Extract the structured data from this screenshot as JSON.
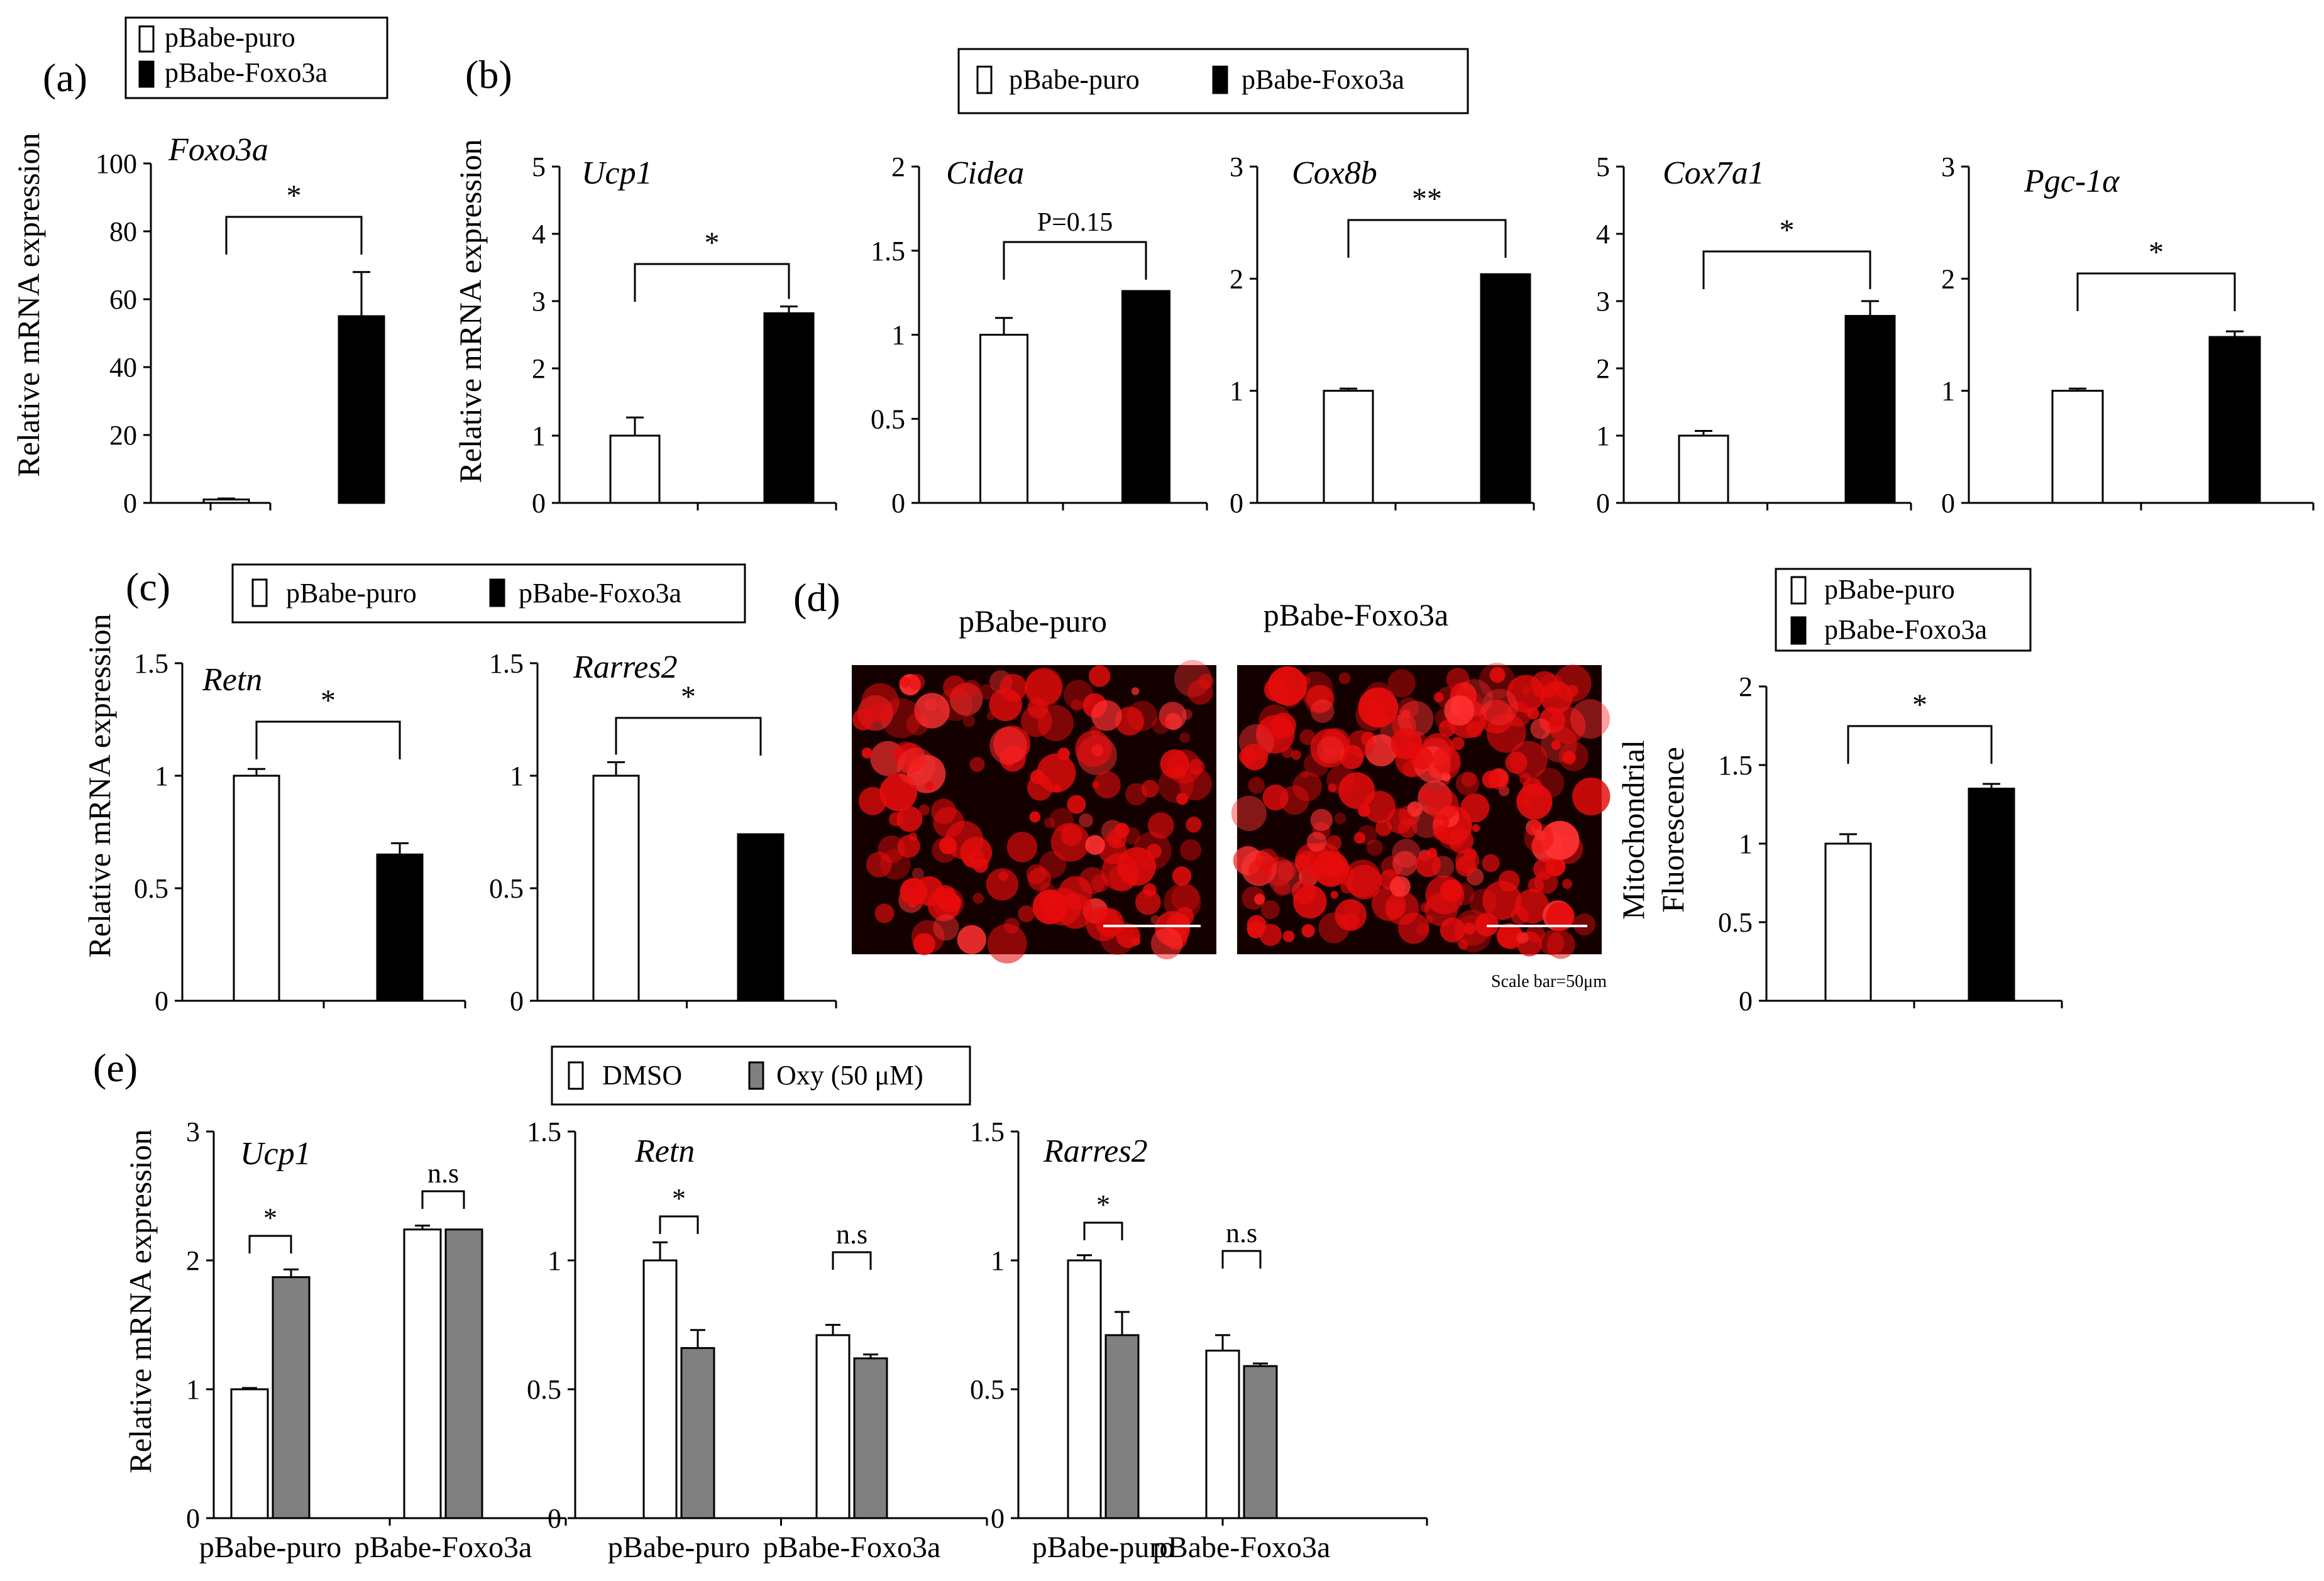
{
  "figure": {
    "panel_labels": {
      "a": "(a)",
      "b": "(b)",
      "c": "(c)",
      "d": "(d)",
      "e": "(e)"
    },
    "y_label": "Relative  mRNA expression",
    "y_label_fluor_line1": "Mitochondrial",
    "y_label_fluor_line2": "Fluorescence",
    "legend_group": [
      {
        "name": "pBabe-puro",
        "color": "#ffffff"
      },
      {
        "name": "pBabe-Foxo3a",
        "color": "#000000"
      }
    ],
    "legend_treatment": [
      {
        "name": "DMSO",
        "color": "#ffffff"
      },
      {
        "name": "Oxy (50 μM)",
        "color": "#808080"
      }
    ],
    "micrograph_titles": [
      "pBabe-puro",
      "pBabe-Foxo3a"
    ],
    "scale_bar_text": "Scale bar=50μm",
    "micrograph_palette": {
      "background": "#150000",
      "cell": "#e60c0c",
      "bright": "#ff3030"
    }
  },
  "chart_data": [
    {
      "id": "a-foxo3a",
      "panel": "a",
      "type": "bar",
      "title": "Foxo3a",
      "ylabel": "Relative  mRNA expression",
      "ylim": [
        0,
        100
      ],
      "yticks": [
        0,
        20,
        40,
        60,
        80,
        100
      ],
      "categories": [
        "pBabe-puro",
        "pBabe-Foxo3a"
      ],
      "values": [
        1,
        55
      ],
      "errors": [
        0.3,
        13
      ],
      "colors": [
        "#ffffff",
        "#000000"
      ],
      "significance": [
        {
          "from": 0,
          "to": 1,
          "label": "*"
        }
      ]
    },
    {
      "id": "b-ucp1",
      "panel": "b",
      "type": "bar",
      "title": "Ucp1",
      "ylabel": "Relative  mRNA expression",
      "ylim": [
        0,
        5
      ],
      "yticks": [
        0,
        1,
        2,
        3,
        4,
        5
      ],
      "categories": [
        "pBabe-puro",
        "pBabe-Foxo3a"
      ],
      "values": [
        1,
        2.82
      ],
      "errors": [
        0.27,
        0.1
      ],
      "colors": [
        "#ffffff",
        "#000000"
      ],
      "significance": [
        {
          "from": 0,
          "to": 1,
          "label": "*"
        }
      ]
    },
    {
      "id": "b-cidea",
      "panel": "b",
      "type": "bar",
      "title": "Cidea",
      "ylabel": "",
      "ylim": [
        0,
        2
      ],
      "yticks": [
        0,
        0.5,
        1,
        1.5,
        2
      ],
      "categories": [
        "pBabe-puro",
        "pBabe-Foxo3a"
      ],
      "values": [
        1,
        1.26
      ],
      "errors": [
        0.1,
        0
      ],
      "colors": [
        "#ffffff",
        "#000000"
      ],
      "significance": [
        {
          "from": 0,
          "to": 1,
          "label": "P=0.15"
        }
      ]
    },
    {
      "id": "b-cox8b",
      "panel": "b",
      "type": "bar",
      "title": "Cox8b",
      "ylabel": "",
      "ylim": [
        0,
        3
      ],
      "yticks": [
        0,
        1,
        2,
        3
      ],
      "categories": [
        "pBabe-puro",
        "pBabe-Foxo3a"
      ],
      "values": [
        1,
        2.04
      ],
      "errors": [
        0.02,
        0
      ],
      "colors": [
        "#ffffff",
        "#000000"
      ],
      "significance": [
        {
          "from": 0,
          "to": 1,
          "label": "**"
        }
      ]
    },
    {
      "id": "b-cox7a1",
      "panel": "b",
      "type": "bar",
      "title": "Cox7a1",
      "ylabel": "",
      "ylim": [
        0,
        5
      ],
      "yticks": [
        0,
        1,
        2,
        3,
        4,
        5
      ],
      "categories": [
        "pBabe-puro",
        "pBabe-Foxo3a"
      ],
      "values": [
        1,
        2.78
      ],
      "errors": [
        0.07,
        0.22
      ],
      "colors": [
        "#ffffff",
        "#000000"
      ],
      "significance": [
        {
          "from": 0,
          "to": 1,
          "label": "*"
        }
      ]
    },
    {
      "id": "b-pgc1a",
      "panel": "b",
      "type": "bar",
      "title": "Pgc-1α",
      "ylabel": "",
      "ylim": [
        0,
        3
      ],
      "yticks": [
        0,
        1,
        2,
        3
      ],
      "categories": [
        "pBabe-puro",
        "pBabe-Foxo3a"
      ],
      "values": [
        1,
        1.48
      ],
      "errors": [
        0.02,
        0.05
      ],
      "colors": [
        "#ffffff",
        "#000000"
      ],
      "significance": [
        {
          "from": 0,
          "to": 1,
          "label": "*"
        }
      ]
    },
    {
      "id": "c-retn",
      "panel": "c",
      "type": "bar",
      "title": "Retn",
      "ylabel": "Relative  mRNA expression",
      "ylim": [
        0,
        1.5
      ],
      "yticks": [
        0,
        0.5,
        1,
        1.5
      ],
      "categories": [
        "pBabe-puro",
        "pBabe-Foxo3a"
      ],
      "values": [
        1,
        0.65
      ],
      "errors": [
        0.03,
        0.05
      ],
      "colors": [
        "#ffffff",
        "#000000"
      ],
      "significance": [
        {
          "from": 0,
          "to": 1,
          "label": "*"
        }
      ]
    },
    {
      "id": "c-rarres2",
      "panel": "c",
      "type": "bar",
      "title": "Rarres2",
      "ylabel": "",
      "ylim": [
        0,
        1.5
      ],
      "yticks": [
        0,
        0.5,
        1,
        1.5
      ],
      "categories": [
        "pBabe-puro",
        "pBabe-Foxo3a"
      ],
      "values": [
        1,
        0.74
      ],
      "errors": [
        0.06,
        0
      ],
      "colors": [
        "#ffffff",
        "#000000"
      ],
      "significance": [
        {
          "from": 0,
          "to": 1,
          "label": "*"
        }
      ]
    },
    {
      "id": "d-fluor",
      "panel": "d",
      "type": "bar",
      "title": "",
      "ylabel": "Mitochondrial Fluorescence",
      "ylim": [
        0,
        2
      ],
      "yticks": [
        0,
        0.5,
        1,
        1.5,
        2
      ],
      "categories": [
        "pBabe-puro",
        "pBabe-Foxo3a"
      ],
      "values": [
        1,
        1.35
      ],
      "errors": [
        0.06,
        0.03
      ],
      "colors": [
        "#ffffff",
        "#000000"
      ],
      "significance": [
        {
          "from": 0,
          "to": 1,
          "label": "*"
        }
      ]
    },
    {
      "id": "e-ucp1",
      "panel": "e",
      "type": "grouped_bar",
      "title": "Ucp1",
      "ylabel": "Relative  mRNA expression",
      "ylim": [
        0,
        3
      ],
      "yticks": [
        0,
        1,
        2,
        3
      ],
      "categories": [
        "pBabe-puro",
        "pBabe-Foxo3a"
      ],
      "series": [
        {
          "name": "DMSO",
          "color": "#ffffff",
          "values": [
            1,
            2.24
          ],
          "errors": [
            0.01,
            0.03
          ]
        },
        {
          "name": "Oxy (50 μM)",
          "color": "#808080",
          "values": [
            1.87,
            2.24
          ],
          "errors": [
            0.06,
            0
          ]
        }
      ],
      "significance": [
        {
          "group": 0,
          "label": "*"
        },
        {
          "group": 1,
          "label": "n.s"
        }
      ]
    },
    {
      "id": "e-retn",
      "panel": "e",
      "type": "grouped_bar",
      "title": "Retn",
      "ylabel": "",
      "ylim": [
        0,
        1.5
      ],
      "yticks": [
        0,
        0.5,
        1,
        1.5
      ],
      "categories": [
        "pBabe-puro",
        "pBabe-Foxo3a"
      ],
      "series": [
        {
          "name": "DMSO",
          "color": "#ffffff",
          "values": [
            1,
            0.71
          ],
          "errors": [
            0.07,
            0.04
          ]
        },
        {
          "name": "Oxy (50 μM)",
          "color": "#808080",
          "values": [
            0.66,
            0.62
          ],
          "errors": [
            0.07,
            0.015
          ]
        }
      ],
      "significance": [
        {
          "group": 0,
          "label": "*"
        },
        {
          "group": 1,
          "label": "n.s"
        }
      ]
    },
    {
      "id": "e-rarres2",
      "panel": "e",
      "type": "grouped_bar",
      "title": "Rarres2",
      "ylabel": "",
      "ylim": [
        0,
        1.5
      ],
      "yticks": [
        0,
        0.5,
        1,
        1.5
      ],
      "categories": [
        "pBabe-puro",
        "pBabe-Foxo3a"
      ],
      "series": [
        {
          "name": "DMSO",
          "color": "#ffffff",
          "values": [
            1,
            0.65
          ],
          "errors": [
            0.02,
            0.06
          ]
        },
        {
          "name": "Oxy (50 μM)",
          "color": "#808080",
          "values": [
            0.71,
            0.59
          ],
          "errors": [
            0.09,
            0.01
          ]
        }
      ],
      "significance": [
        {
          "group": 0,
          "label": "*"
        },
        {
          "group": 1,
          "label": "n.s"
        }
      ]
    }
  ]
}
